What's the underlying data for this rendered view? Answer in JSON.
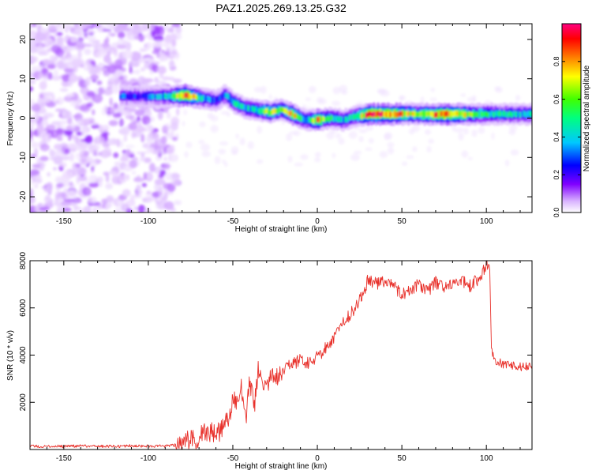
{
  "figure_title": "PAZ1.2025.269.13.25.G32",
  "chart_data": [
    {
      "type": "heatmap",
      "xlabel": "Height of straight line (km)",
      "ylabel": "Frequency (Hz)",
      "xlim": [
        -170,
        127
      ],
      "ylim": [
        -24,
        24
      ],
      "x_ticks": [
        -150,
        -100,
        -50,
        0,
        50,
        100
      ],
      "y_ticks": [
        -20,
        -10,
        0,
        10,
        20
      ],
      "colorbar": {
        "label": "Normalized spectral amplitude",
        "range": [
          0,
          1
        ],
        "ticks": [
          0.0,
          0.2,
          0.4,
          0.6,
          0.8
        ],
        "colors": [
          "#ffffff",
          "#d9b3ff",
          "#8000ff",
          "#0000ff",
          "#00c8ff",
          "#00ff80",
          "#40ff00",
          "#ffff00",
          "#ff8000",
          "#ff0000",
          "#ff0080"
        ]
      },
      "noise_region_x": [
        -170,
        -82
      ],
      "ridge": [
        {
          "x": -117,
          "f": 5.5,
          "a": 0.35
        },
        {
          "x": -105,
          "f": 5.5,
          "a": 0.3
        },
        {
          "x": -90,
          "f": 5.5,
          "a": 0.45
        },
        {
          "x": -78,
          "f": 5.8,
          "a": 0.9
        },
        {
          "x": -68,
          "f": 5.0,
          "a": 0.45
        },
        {
          "x": -60,
          "f": 4.5,
          "a": 0.3
        },
        {
          "x": -55,
          "f": 6.0,
          "a": 0.4
        },
        {
          "x": -50,
          "f": 4.0,
          "a": 0.5
        },
        {
          "x": -43,
          "f": 2.5,
          "a": 0.45
        },
        {
          "x": -35,
          "f": 2.0,
          "a": 0.5
        },
        {
          "x": -28,
          "f": 1.5,
          "a": 0.7
        },
        {
          "x": -22,
          "f": 2.2,
          "a": 0.55
        },
        {
          "x": -15,
          "f": 1.0,
          "a": 0.75
        },
        {
          "x": -8,
          "f": -0.5,
          "a": 0.4
        },
        {
          "x": 0,
          "f": -0.5,
          "a": 0.8
        },
        {
          "x": 8,
          "f": 0.0,
          "a": 0.5
        },
        {
          "x": 15,
          "f": -0.5,
          "a": 0.45
        },
        {
          "x": 22,
          "f": 0.5,
          "a": 0.5
        },
        {
          "x": 30,
          "f": 1.0,
          "a": 0.95
        },
        {
          "x": 45,
          "f": 1.0,
          "a": 0.85
        },
        {
          "x": 60,
          "f": 1.0,
          "a": 0.6
        },
        {
          "x": 75,
          "f": 1.0,
          "a": 0.95
        },
        {
          "x": 90,
          "f": 1.0,
          "a": 0.6
        },
        {
          "x": 105,
          "f": 1.0,
          "a": 0.5
        },
        {
          "x": 120,
          "f": 1.0,
          "a": 0.45
        }
      ]
    },
    {
      "type": "line",
      "xlabel": "Height of straight line (km)",
      "ylabel": "SNR (10 * v/v)",
      "xlim": [
        -170,
        127
      ],
      "ylim": [
        0,
        8000
      ],
      "x_ticks": [
        -150,
        -100,
        -50,
        0,
        50,
        100
      ],
      "y_ticks": [
        2000,
        4000,
        6000,
        8000
      ],
      "series": [
        {
          "color": "#e8302a",
          "x": [
            -170,
            -160,
            -150,
            -140,
            -130,
            -120,
            -110,
            -100,
            -90,
            -85,
            -80,
            -75,
            -70,
            -65,
            -60,
            -55,
            -52,
            -50,
            -48,
            -45,
            -42,
            -40,
            -37,
            -35,
            -32,
            -30,
            -25,
            -20,
            -15,
            -10,
            -5,
            0,
            5,
            10,
            15,
            20,
            25,
            28,
            30,
            35,
            40,
            45,
            50,
            55,
            60,
            65,
            70,
            75,
            80,
            85,
            90,
            95,
            98,
            100,
            102,
            103,
            105,
            110,
            115,
            120,
            127
          ],
          "y": [
            130,
            140,
            130,
            150,
            140,
            130,
            160,
            140,
            150,
            200,
            250,
            400,
            500,
            800,
            600,
            1000,
            1400,
            2200,
            1800,
            2600,
            1500,
            2900,
            2000,
            3500,
            2600,
            2900,
            3100,
            3400,
            3600,
            3800,
            3600,
            3900,
            4300,
            4700,
            5300,
            5800,
            6300,
            6800,
            7200,
            7000,
            7100,
            6900,
            6600,
            6800,
            7000,
            6700,
            7100,
            6800,
            7000,
            7200,
            6900,
            7200,
            7500,
            7900,
            7600,
            4200,
            3800,
            3600,
            3550,
            3500,
            3550
          ]
        }
      ]
    }
  ]
}
